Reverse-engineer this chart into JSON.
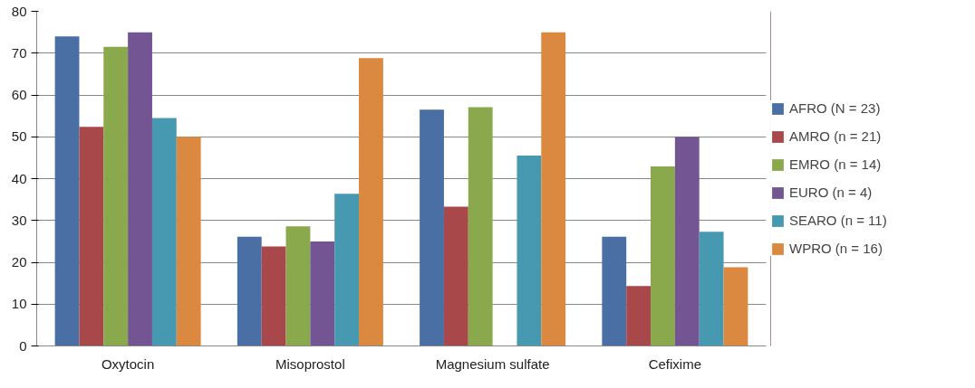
{
  "chart_data": {
    "type": "bar",
    "categories": [
      "Oxytocin",
      "Misoprostol",
      "Magnesium sulfate",
      "Cefixime"
    ],
    "series": [
      {
        "name": "AFRO (N = 23)",
        "color": "#4a6fa5",
        "values": [
          74,
          26.1,
          56.5,
          26.1
        ]
      },
      {
        "name": "AMRO (n = 21)",
        "color": "#a9484a",
        "values": [
          52.4,
          23.8,
          33.3,
          14.3
        ]
      },
      {
        "name": "EMRO (n = 14)",
        "color": "#8aa84c",
        "values": [
          71.5,
          28.6,
          57.1,
          42.9
        ]
      },
      {
        "name": "EURO (n = 4)",
        "color": "#725592",
        "values": [
          75,
          25,
          0,
          50
        ]
      },
      {
        "name": "SEARO (n = 11)",
        "color": "#4699b0",
        "values": [
          54.5,
          36.4,
          45.5,
          27.3
        ]
      },
      {
        "name": "WPRO (n = 16)",
        "color": "#db8840",
        "values": [
          50,
          68.8,
          75,
          18.8
        ]
      }
    ],
    "ylim": [
      0,
      80
    ],
    "yticks": [
      0,
      10,
      20,
      30,
      40,
      50,
      60,
      70,
      80
    ],
    "grid": "y",
    "legend": "right"
  }
}
